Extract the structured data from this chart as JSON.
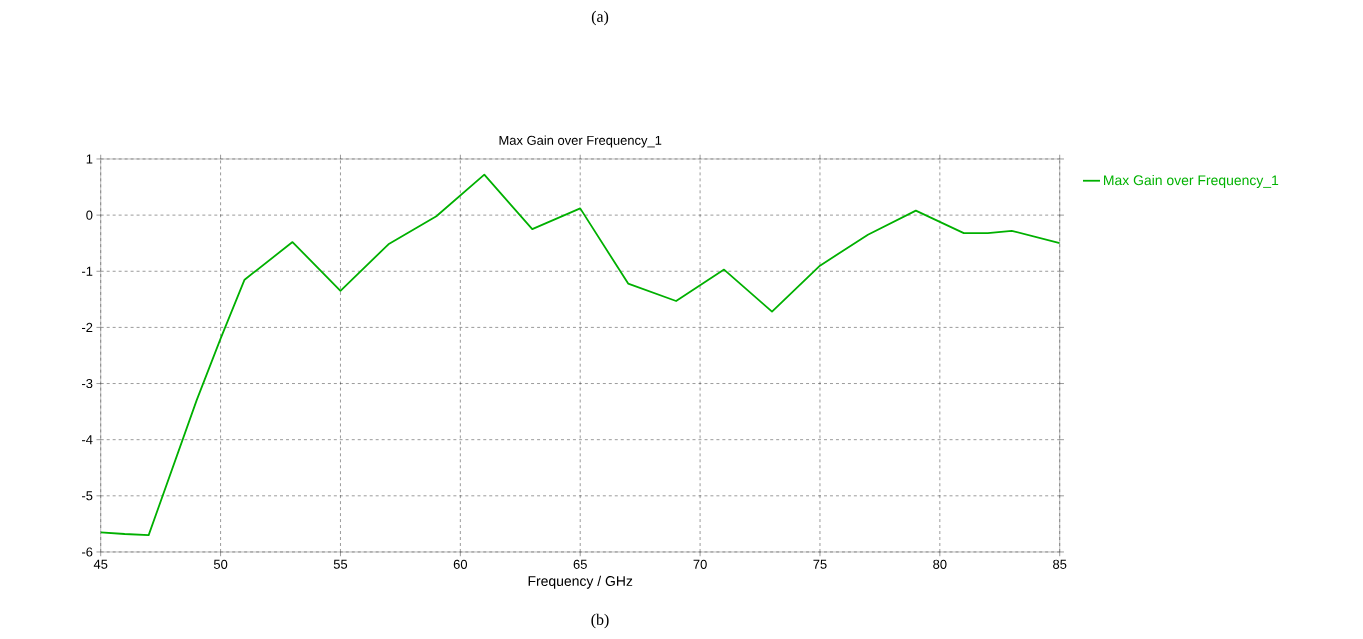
{
  "chart_data": {
    "type": "line",
    "title": "Max Gain over Frequency_1",
    "xlabel": "Frequency / GHz",
    "annotations": [
      "(a)",
      "(b)"
    ],
    "x": [
      45,
      46,
      47,
      49,
      50,
      51,
      53,
      55,
      57,
      59,
      61,
      63,
      65,
      67,
      69,
      71,
      73,
      75,
      77,
      79,
      81,
      82,
      83,
      85
    ],
    "series": [
      {
        "name": "Max Gain over Frequency_1",
        "color": "#00b000",
        "values": [
          -5.65,
          -5.68,
          -5.7,
          -3.3,
          -2.2,
          -1.15,
          -0.48,
          -1.35,
          -0.52,
          -0.02,
          0.72,
          -0.25,
          0.12,
          -1.22,
          -1.53,
          -0.97,
          -1.72,
          -0.9,
          -0.35,
          0.08,
          -0.32,
          -0.32,
          -0.28,
          -0.5
        ]
      }
    ],
    "xlim": [
      45,
      85
    ],
    "xticks": [
      45,
      50,
      55,
      60,
      65,
      70,
      75,
      80,
      85
    ],
    "ylim": [
      -6,
      1
    ],
    "yticks": [
      -6,
      -5,
      -4,
      -3,
      -2,
      -1,
      0,
      1
    ],
    "grid": true,
    "legend": "top right",
    "marker": "none",
    "line_style": "solid"
  }
}
